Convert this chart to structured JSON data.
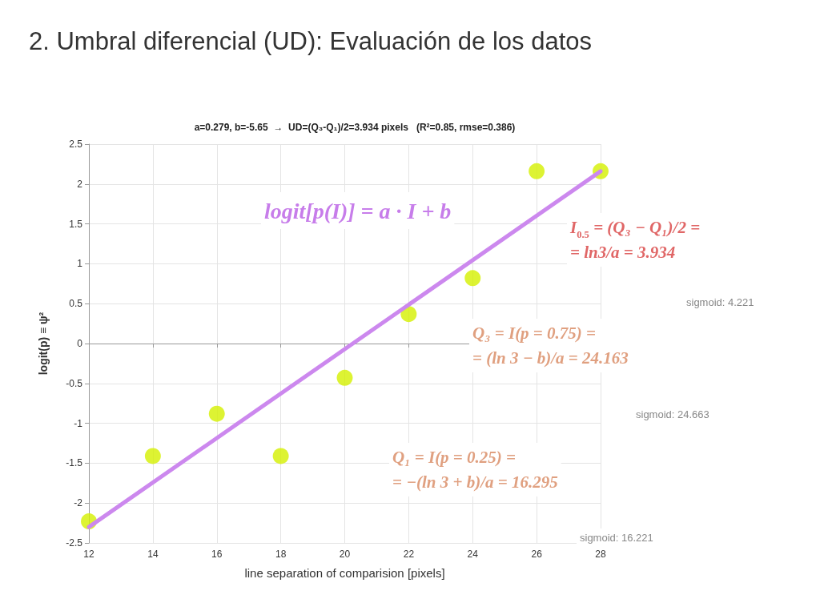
{
  "chart_data": {
    "type": "scatter",
    "title": "2. Umbral diferencial (UD): Evaluación de los datos",
    "subtitle": "a=0.279, b=-5.65  →  UD=(Q₃-Q₁)/2=3.934 pixels   (R²=0.85, rmse=0.386)",
    "xlabel": "line separation of comparision [pixels]",
    "ylabel": "logit(p) ≡ ψ²",
    "xlim": [
      12,
      28
    ],
    "xticks": [
      12,
      14,
      16,
      18,
      20,
      22,
      24,
      26,
      28
    ],
    "ylim": [
      -2.5,
      2.5
    ],
    "yticks": [
      -2.5,
      -2,
      -1.5,
      -1,
      -0.5,
      0,
      0.5,
      1,
      1.5,
      2,
      2.5
    ],
    "grid": true,
    "marker": "circle",
    "series": [
      {
        "color": "#d4f000",
        "x": [
          12,
          14,
          16,
          18,
          20,
          22,
          24,
          26,
          28
        ],
        "values": [
          -2.23,
          -1.41,
          -0.88,
          -1.41,
          -0.43,
          0.37,
          0.82,
          2.16,
          2.16
        ]
      },
      {
        "type": "line",
        "color": "#cc88ee",
        "marker": "none",
        "x": [
          12,
          28
        ],
        "values": [
          -2.3,
          2.16
        ]
      }
    ],
    "annotations": [
      "logit[p(I)] = a · I + b",
      "I$_{0.5}$ = (Q₃ − Q₁)/2 =\n= ln3/a = 3.934",
      "sigmoid: 4.221",
      "Q₃ = I(p = 0.75) =\n= (ln 3 − b)/a = 24.163",
      "sigmoid: 24.663",
      "Q₁ = I(p = 0.25) =\n= −(ln 3 + b)/a = 16.295",
      "sigmoid: 16.221"
    ]
  }
}
